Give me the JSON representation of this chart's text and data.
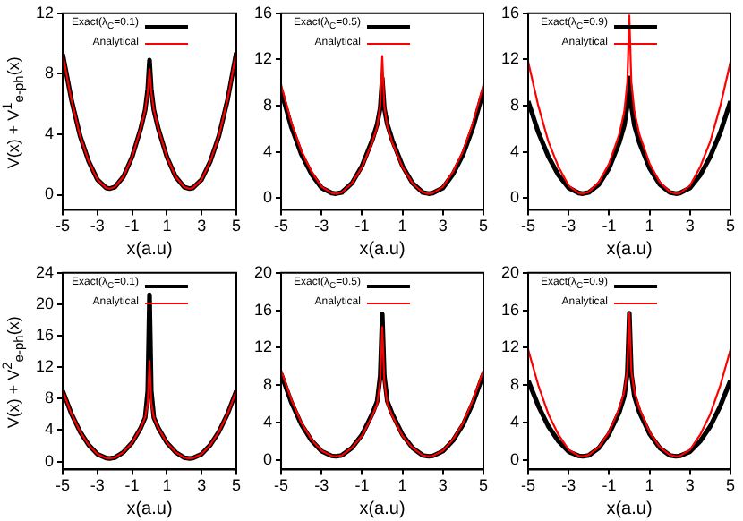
{
  "chart_data": [
    {
      "type": "line",
      "xlabel": "x(a.u)",
      "ylabel": "V(x) + V$^{1}$$_{e-ph}$(x)",
      "x": [
        -5,
        -4.5,
        -4,
        -3.5,
        -3,
        -2.5,
        -2.3,
        -2,
        -1.5,
        -1,
        -0.5,
        -0.25,
        -0.1,
        0,
        0.1,
        0.25,
        0.5,
        1,
        1.5,
        2,
        2.3,
        2.5,
        3,
        3.5,
        4,
        4.5,
        5
      ],
      "xlim": [
        -5,
        5
      ],
      "xticks": [
        -5,
        -3,
        -1,
        1,
        3,
        5
      ],
      "ylim": [
        -1,
        12
      ],
      "yticks": [
        0,
        4,
        8,
        12
      ],
      "grid": false,
      "legend": "top",
      "series": [
        {
          "name": "Exact(λ$_{C}$=0.1)",
          "color": "#000000",
          "values": [
            9.3,
            6.3,
            3.9,
            2.2,
            1.0,
            0.45,
            0.4,
            0.5,
            1.2,
            2.5,
            4.4,
            5.6,
            7.0,
            8.9,
            7.0,
            5.6,
            4.4,
            2.5,
            1.2,
            0.5,
            0.4,
            0.45,
            1.0,
            2.2,
            3.9,
            6.3,
            9.4
          ]
        },
        {
          "name": "Analytical",
          "color": "#ff0000",
          "values": [
            9.3,
            6.3,
            3.9,
            2.2,
            1.0,
            0.45,
            0.4,
            0.5,
            1.2,
            2.5,
            4.4,
            5.6,
            6.8,
            8.3,
            6.8,
            5.6,
            4.4,
            2.5,
            1.2,
            0.5,
            0.4,
            0.45,
            1.0,
            2.2,
            3.9,
            6.3,
            9.4
          ]
        }
      ]
    },
    {
      "type": "line",
      "xlabel": "x(a.u)",
      "x": [
        -5,
        -4.5,
        -4,
        -3.5,
        -3,
        -2.5,
        -2.3,
        -2,
        -1.5,
        -1,
        -0.5,
        -0.25,
        -0.1,
        0,
        0.1,
        0.25,
        0.5,
        1,
        1.5,
        2,
        2.3,
        2.5,
        3,
        3.5,
        4,
        4.5,
        5
      ],
      "xlim": [
        -5,
        5
      ],
      "xticks": [
        -5,
        -3,
        -1,
        1,
        3,
        5
      ],
      "ylim": [
        -1,
        16
      ],
      "yticks": [
        0,
        4,
        8,
        12,
        16
      ],
      "grid": false,
      "legend": "top",
      "series": [
        {
          "name": "Exact(λ$_{C}$=0.5)",
          "color": "#000000",
          "values": [
            9.3,
            6.2,
            3.8,
            2.1,
            0.9,
            0.45,
            0.4,
            0.5,
            1.3,
            2.8,
            5.0,
            6.4,
            7.8,
            10.4,
            7.8,
            6.4,
            5.0,
            2.8,
            1.3,
            0.5,
            0.4,
            0.45,
            0.9,
            2.1,
            3.8,
            6.2,
            9.3
          ]
        },
        {
          "name": "Analytical",
          "color": "#ff0000",
          "values": [
            9.8,
            6.6,
            4.1,
            2.3,
            1.0,
            0.45,
            0.4,
            0.5,
            1.3,
            2.7,
            4.8,
            6.2,
            8.0,
            12.3,
            8.0,
            6.2,
            4.8,
            2.7,
            1.3,
            0.5,
            0.4,
            0.45,
            1.0,
            2.3,
            4.1,
            6.6,
            9.8
          ]
        }
      ]
    },
    {
      "type": "line",
      "xlabel": "x(a.u)",
      "x": [
        -5,
        -4.5,
        -4,
        -3.5,
        -3,
        -2.5,
        -2.3,
        -2,
        -1.5,
        -1,
        -0.5,
        -0.25,
        -0.1,
        0,
        0.1,
        0.25,
        0.5,
        1,
        1.5,
        2,
        2.3,
        2.5,
        3,
        3.5,
        4,
        4.5,
        5
      ],
      "xlim": [
        -5,
        5
      ],
      "xticks": [
        -5,
        -3,
        -1,
        1,
        3,
        5
      ],
      "ylim": [
        -1,
        16
      ],
      "yticks": [
        0,
        4,
        8,
        12,
        16
      ],
      "grid": false,
      "legend": "top",
      "series": [
        {
          "name": "Exact(λ$_{C}$=0.9)",
          "color": "#000000",
          "values": [
            8.4,
            5.7,
            3.6,
            2.0,
            0.9,
            0.45,
            0.4,
            0.5,
            1.2,
            2.6,
            4.8,
            6.3,
            8.0,
            10.4,
            8.0,
            6.3,
            4.8,
            2.6,
            1.2,
            0.5,
            0.4,
            0.45,
            0.9,
            2.0,
            3.6,
            5.7,
            8.4
          ]
        },
        {
          "name": "Analytical",
          "color": "#ff0000",
          "values": [
            11.8,
            8.0,
            4.9,
            2.7,
            1.1,
            0.45,
            0.4,
            0.55,
            1.4,
            3.0,
            5.5,
            7.5,
            10.0,
            15.8,
            10.0,
            7.5,
            5.5,
            3.0,
            1.4,
            0.55,
            0.4,
            0.45,
            1.1,
            2.7,
            4.9,
            8.0,
            11.8
          ]
        }
      ]
    },
    {
      "type": "line",
      "xlabel": "x(a.u)",
      "ylabel": "V(x) + V$^{2}$$_{e-ph}$(x)",
      "x": [
        -5,
        -4.5,
        -4,
        -3.5,
        -3,
        -2.5,
        -2.3,
        -2,
        -1.5,
        -1,
        -0.5,
        -0.25,
        -0.1,
        0,
        0.1,
        0.25,
        0.5,
        1,
        1.5,
        2,
        2.3,
        2.5,
        3,
        3.5,
        4,
        4.5,
        5
      ],
      "xlim": [
        -5,
        5
      ],
      "xticks": [
        -5,
        -3,
        -1,
        1,
        3,
        5
      ],
      "ylim": [
        -1,
        24
      ],
      "yticks": [
        0,
        4,
        8,
        12,
        16,
        20,
        24
      ],
      "grid": false,
      "legend": "top",
      "series": [
        {
          "name": "Exact(λ$_{C}$=0.1)",
          "color": "#000000",
          "values": [
            9.0,
            6.1,
            3.8,
            2.1,
            0.95,
            0.45,
            0.4,
            0.5,
            1.2,
            2.4,
            4.3,
            5.6,
            9.0,
            21.2,
            9.0,
            5.6,
            4.3,
            2.4,
            1.2,
            0.5,
            0.4,
            0.45,
            0.95,
            2.1,
            3.8,
            6.1,
            9.0
          ]
        },
        {
          "name": "Analytical",
          "color": "#ff0000",
          "values": [
            9.0,
            6.1,
            3.8,
            2.1,
            0.95,
            0.45,
            0.4,
            0.5,
            1.2,
            2.4,
            4.3,
            5.6,
            7.5,
            12.8,
            7.5,
            5.6,
            4.3,
            2.4,
            1.2,
            0.5,
            0.4,
            0.45,
            0.95,
            2.1,
            3.8,
            6.1,
            9.0
          ]
        }
      ]
    },
    {
      "type": "line",
      "xlabel": "x(a.u)",
      "x": [
        -5,
        -4.5,
        -4,
        -3.5,
        -3,
        -2.5,
        -2.3,
        -2,
        -1.5,
        -1,
        -0.5,
        -0.25,
        -0.1,
        0,
        0.1,
        0.25,
        0.5,
        1,
        1.5,
        2,
        2.3,
        2.5,
        3,
        3.5,
        4,
        4.5,
        5
      ],
      "xlim": [
        -5,
        5
      ],
      "xticks": [
        -5,
        -3,
        -1,
        1,
        3,
        5
      ],
      "ylim": [
        -1,
        20
      ],
      "yticks": [
        0,
        4,
        8,
        12,
        16,
        20
      ],
      "grid": false,
      "legend": "top",
      "series": [
        {
          "name": "Exact(λ$_{C}$=0.5)",
          "color": "#000000",
          "values": [
            9.2,
            6.2,
            3.8,
            2.1,
            0.95,
            0.45,
            0.4,
            0.5,
            1.3,
            2.7,
            4.9,
            6.3,
            9.0,
            15.6,
            9.0,
            6.3,
            4.9,
            2.7,
            1.3,
            0.5,
            0.4,
            0.45,
            0.95,
            2.1,
            3.8,
            6.2,
            9.2
          ]
        },
        {
          "name": "Analytical",
          "color": "#ff0000",
          "values": [
            9.6,
            6.5,
            4.0,
            2.2,
            1.0,
            0.45,
            0.4,
            0.5,
            1.3,
            2.6,
            4.7,
            6.0,
            8.5,
            14.2,
            8.5,
            6.0,
            4.7,
            2.6,
            1.3,
            0.5,
            0.4,
            0.45,
            1.0,
            2.2,
            4.0,
            6.5,
            9.6
          ]
        }
      ]
    },
    {
      "type": "line",
      "xlabel": "x(a.u)",
      "x": [
        -5,
        -4.5,
        -4,
        -3.5,
        -3,
        -2.5,
        -2.3,
        -2,
        -1.5,
        -1,
        -0.5,
        -0.25,
        -0.1,
        0,
        0.1,
        0.25,
        0.5,
        1,
        1.5,
        2,
        2.3,
        2.5,
        3,
        3.5,
        4,
        4.5,
        5
      ],
      "xlim": [
        -5,
        5
      ],
      "xticks": [
        -5,
        -3,
        -1,
        1,
        3,
        5
      ],
      "ylim": [
        -1,
        20
      ],
      "yticks": [
        0,
        4,
        8,
        12,
        16,
        20
      ],
      "grid": false,
      "legend": "top",
      "series": [
        {
          "name": "Exact(λ$_{C}$=0.9)",
          "color": "#000000",
          "values": [
            8.5,
            5.8,
            3.6,
            2.0,
            0.9,
            0.45,
            0.4,
            0.5,
            1.3,
            2.8,
            5.1,
            6.8,
            9.2,
            15.7,
            9.2,
            6.8,
            5.1,
            2.8,
            1.3,
            0.5,
            0.4,
            0.45,
            0.9,
            2.0,
            3.6,
            5.8,
            8.5
          ]
        },
        {
          "name": "Analytical",
          "color": "#ff0000",
          "values": [
            11.8,
            8.0,
            4.9,
            2.7,
            1.1,
            0.45,
            0.4,
            0.55,
            1.4,
            3.0,
            5.5,
            7.3,
            9.5,
            15.7,
            9.5,
            7.3,
            5.5,
            3.0,
            1.4,
            0.55,
            0.4,
            0.45,
            1.1,
            2.7,
            4.9,
            8.0,
            11.8
          ]
        }
      ]
    }
  ]
}
